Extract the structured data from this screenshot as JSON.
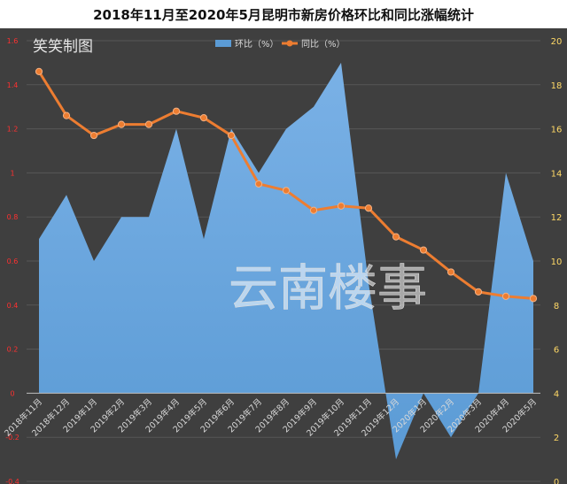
{
  "chart_data": {
    "type": "area+line",
    "title": "2018年11月至2020年5月昆明市新房价格环比和同比涨幅统计",
    "watermarks": [
      "笑笑制图",
      "云南楼事"
    ],
    "categories": [
      "2018年11月",
      "2018年12月",
      "2019年1月",
      "2019年2月",
      "2019年3月",
      "2019年4月",
      "2019年5月",
      "2019年6月",
      "2019年7月",
      "2019年8月",
      "2019年9月",
      "2019年10月",
      "2019年11月",
      "2019年12月",
      "2020年1月",
      "2020年2月",
      "2020年3月",
      "2020年4月",
      "2020年5月"
    ],
    "legend": {
      "position": "top-center"
    },
    "series": [
      {
        "name": "环比（%）",
        "type": "area",
        "axis": "left",
        "color": "#5b9bd5",
        "values": [
          0.7,
          0.9,
          0.6,
          0.8,
          0.8,
          1.2,
          0.7,
          1.2,
          1.0,
          1.2,
          1.3,
          1.5,
          0.5,
          -0.3,
          0.0,
          -0.2,
          0.0,
          1.0,
          0.6
        ]
      },
      {
        "name": "同比（%）",
        "type": "line",
        "axis": "right",
        "color": "#ed7d31",
        "values": [
          18.6,
          16.6,
          15.7,
          16.2,
          16.2,
          16.8,
          16.5,
          15.7,
          13.5,
          13.2,
          12.3,
          12.5,
          12.4,
          11.1,
          10.5,
          9.5,
          8.6,
          8.4,
          8.3
        ]
      }
    ],
    "y_left": {
      "min": -0.4,
      "max": 1.6,
      "ticks": [
        "-0.4",
        "-0.2",
        "0",
        "0.2",
        "0.4",
        "0.6",
        "0.8",
        "1",
        "1.2",
        "1.4",
        "1.6"
      ],
      "color": "#ff3030"
    },
    "y_right": {
      "min": 0,
      "max": 20,
      "ticks": [
        "0",
        "2",
        "4",
        "6",
        "8",
        "10",
        "12",
        "14",
        "16",
        "18",
        "20"
      ],
      "color": "#ffd966"
    },
    "gridlines": true,
    "colors": {
      "background": "#3f3f3f",
      "grid": "#575757",
      "axis_text": "#d9d9d9"
    }
  }
}
